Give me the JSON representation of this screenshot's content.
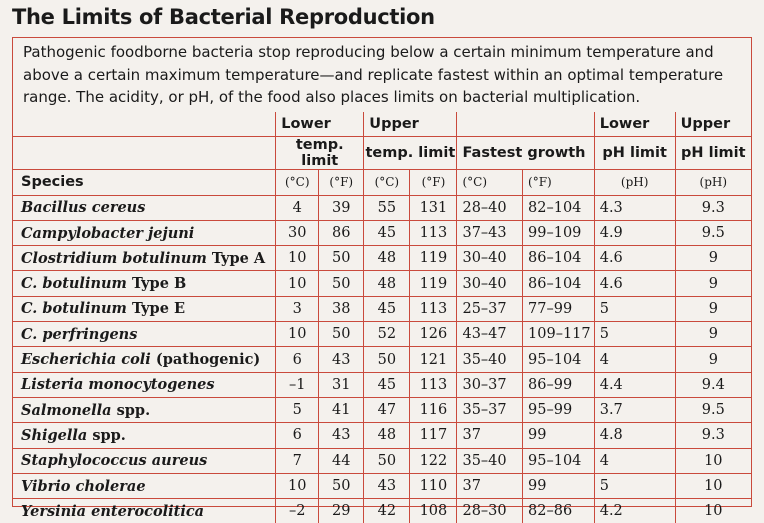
{
  "title": "The Limits of Bacterial Reproduction",
  "intro": "Pathogenic foodborne bacteria stop reproducing below a certain minimum temperature and above a certain maximum temperature—and replicate fastest within an optimal temperature range. The acidity, or pH, of the food also places limits on bacterial multiplication.",
  "headers": {
    "lower_temp_1": "Lower",
    "lower_temp_2": "temp. limit",
    "upper_temp_1": "Upper",
    "upper_temp_2": "temp. limit",
    "fastest": "Fastest growth",
    "lower_ph_1": "Lower",
    "lower_ph_2": "pH limit",
    "upper_ph_1": "Upper",
    "upper_ph_2": "pH limit",
    "species": "Species",
    "units": [
      "(°C)",
      "(°F)",
      "(°C)",
      "(°F)",
      "(°C)",
      "(°F)",
      "(pH)",
      "(pH)"
    ]
  },
  "rows": [
    {
      "species": "Bacillus cereus",
      "suffix": "",
      "lo_c": "4",
      "lo_f": "39",
      "up_c": "55",
      "up_f": "131",
      "fast_c": "28–40",
      "fast_f": "82–104",
      "ph_lo": "4.3",
      "ph_up": "9.3"
    },
    {
      "species": "Campylobacter jejuni",
      "suffix": "",
      "lo_c": "30",
      "lo_f": "86",
      "up_c": "45",
      "up_f": "113",
      "fast_c": "37–43",
      "fast_f": "99–109",
      "ph_lo": "4.9",
      "ph_up": "9.5"
    },
    {
      "species": "Clostridium botulinum",
      "suffix": " Type A",
      "lo_c": "10",
      "lo_f": "50",
      "up_c": "48",
      "up_f": "119",
      "fast_c": "30–40",
      "fast_f": "86–104",
      "ph_lo": "4.6",
      "ph_up": "9"
    },
    {
      "species": "C. botulinum",
      "suffix": " Type B",
      "lo_c": "10",
      "lo_f": "50",
      "up_c": "48",
      "up_f": "119",
      "fast_c": "30–40",
      "fast_f": "86–104",
      "ph_lo": "4.6",
      "ph_up": "9"
    },
    {
      "species": "C. botulinum",
      "suffix": " Type E",
      "lo_c": "3",
      "lo_f": "38",
      "up_c": "45",
      "up_f": "113",
      "fast_c": "25–37",
      "fast_f": "77–99",
      "ph_lo": "5",
      "ph_up": "9"
    },
    {
      "species": "C. perfringens",
      "suffix": "",
      "lo_c": "10",
      "lo_f": "50",
      "up_c": "52",
      "up_f": "126",
      "fast_c": "43–47",
      "fast_f": "109–117",
      "ph_lo": "5",
      "ph_up": "9"
    },
    {
      "species": "Escherichia coli",
      "suffix": " (pathogenic)",
      "lo_c": "6",
      "lo_f": "43",
      "up_c": "50",
      "up_f": "121",
      "fast_c": "35–40",
      "fast_f": "95–104",
      "ph_lo": "4",
      "ph_up": "9"
    },
    {
      "species": "Listeria monocytogenes",
      "suffix": "",
      "lo_c": "–1",
      "lo_f": "31",
      "up_c": "45",
      "up_f": "113",
      "fast_c": "30–37",
      "fast_f": "86–99",
      "ph_lo": "4.4",
      "ph_up": "9.4"
    },
    {
      "species": "Salmonella",
      "suffix": " spp.",
      "lo_c": "5",
      "lo_f": "41",
      "up_c": "47",
      "up_f": "116",
      "fast_c": "35–37",
      "fast_f": "95–99",
      "ph_lo": "3.7",
      "ph_up": "9.5"
    },
    {
      "species": "Shigella",
      "suffix": " spp.",
      "lo_c": "6",
      "lo_f": "43",
      "up_c": "48",
      "up_f": "117",
      "fast_c": "37",
      "fast_f": "99",
      "ph_lo": "4.8",
      "ph_up": "9.3"
    },
    {
      "species": "Staphylococcus aureus",
      "suffix": "",
      "lo_c": "7",
      "lo_f": "44",
      "up_c": "50",
      "up_f": "122",
      "fast_c": "35–40",
      "fast_f": "95–104",
      "ph_lo": "4",
      "ph_up": "10"
    },
    {
      "species": "Vibrio cholerae",
      "suffix": "",
      "lo_c": "10",
      "lo_f": "50",
      "up_c": "43",
      "up_f": "110",
      "fast_c": "37",
      "fast_f": "99",
      "ph_lo": "5",
      "ph_up": "10"
    },
    {
      "species": "Yersinia enterocolitica",
      "suffix": "",
      "lo_c": "–2",
      "lo_f": "29",
      "up_c": "42",
      "up_f": "108",
      "fast_c": "28–30",
      "fast_f": "82–86",
      "ph_lo": "4.2",
      "ph_up": "10"
    }
  ],
  "colors": {
    "rule": "#c94a3c",
    "paper": "#f4f1ed"
  }
}
